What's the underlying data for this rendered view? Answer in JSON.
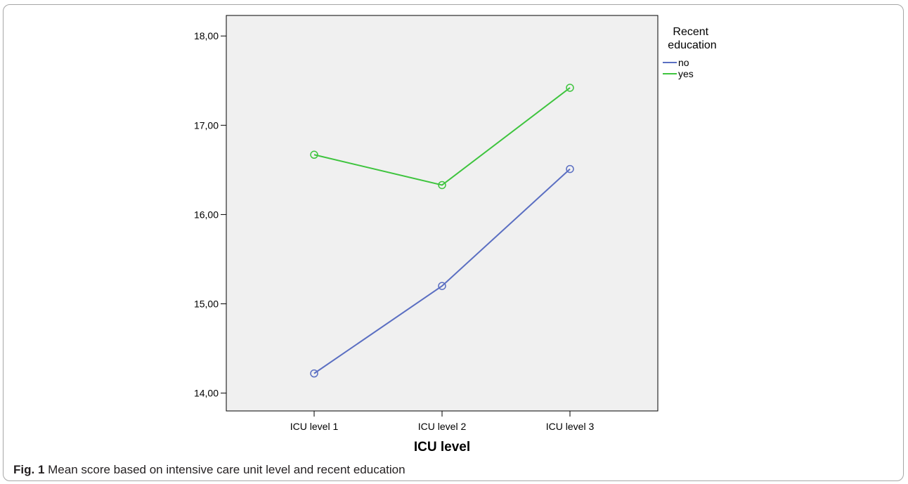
{
  "chart_data": {
    "type": "line",
    "categories": [
      "ICU level 1",
      "ICU level 2",
      "ICU level 3"
    ],
    "series": [
      {
        "name": "no",
        "values": [
          14.22,
          15.2,
          16.51
        ],
        "color": "#5b6fc2"
      },
      {
        "name": "yes",
        "values": [
          16.67,
          16.33,
          17.42
        ],
        "color": "#3ec43e"
      }
    ],
    "xlabel": "ICU level",
    "ylabel": "",
    "ylim": [
      13.8,
      18.23
    ],
    "yticks": [
      14.0,
      15.0,
      16.0,
      17.0,
      18.0
    ],
    "ytick_labels": [
      "14,00",
      "15,00",
      "16,00",
      "17,00",
      "18,00"
    ],
    "legend_title": "Recent\neducation",
    "legend_placement": "top-right-outside",
    "grid": false,
    "plot_background": "#f0f0f0"
  },
  "caption": {
    "label": "Fig. 1",
    "text": "Mean score based on intensive care unit level and recent education"
  }
}
